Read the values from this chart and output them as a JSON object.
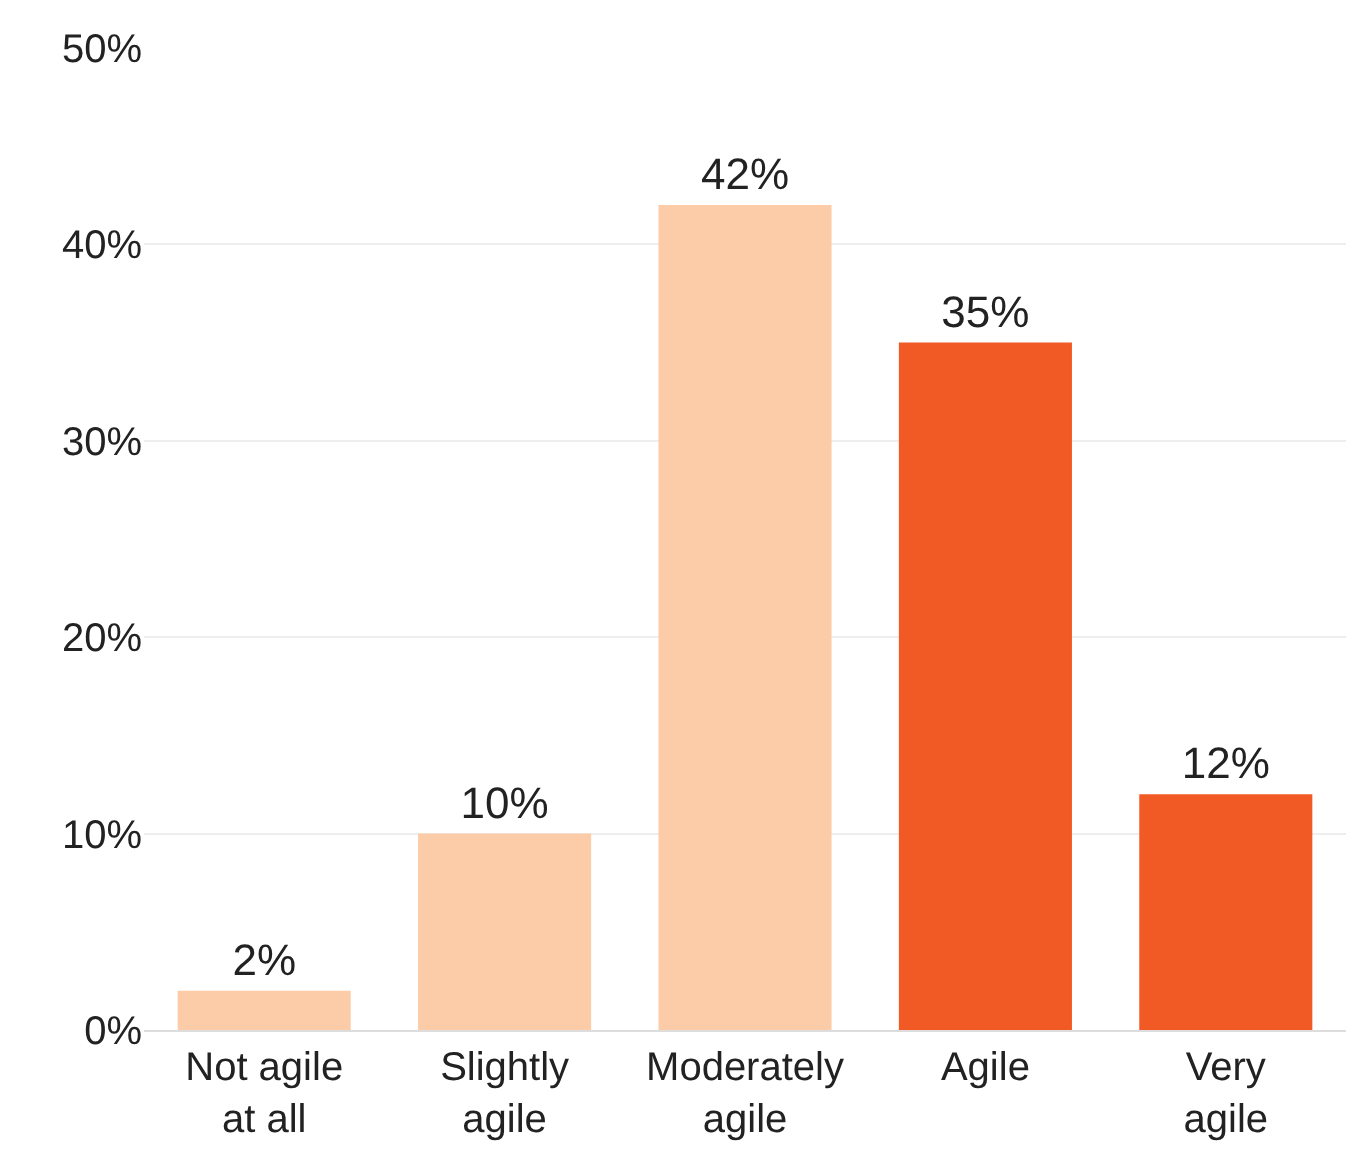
{
  "chart_data": {
    "type": "bar",
    "categories": [
      "Not agile at all",
      "Slightly agile",
      "Moderately agile",
      "Agile",
      "Very agile"
    ],
    "values": [
      2,
      10,
      42,
      35,
      12
    ],
    "colors": [
      "#fccca8",
      "#fccca8",
      "#fccca8",
      "#f15a24",
      "#f15a24"
    ],
    "value_labels": [
      "2%",
      "10%",
      "42%",
      "35%",
      "12%"
    ],
    "ylim": [
      0,
      50
    ],
    "yticks": [
      {
        "value": 0,
        "label": "0%"
      },
      {
        "value": 10,
        "label": "10%"
      },
      {
        "value": 20,
        "label": "20%"
      },
      {
        "value": 30,
        "label": "30%"
      },
      {
        "value": 40,
        "label": "40%"
      },
      {
        "value": 50,
        "label": "50%"
      }
    ],
    "grid": "y"
  }
}
